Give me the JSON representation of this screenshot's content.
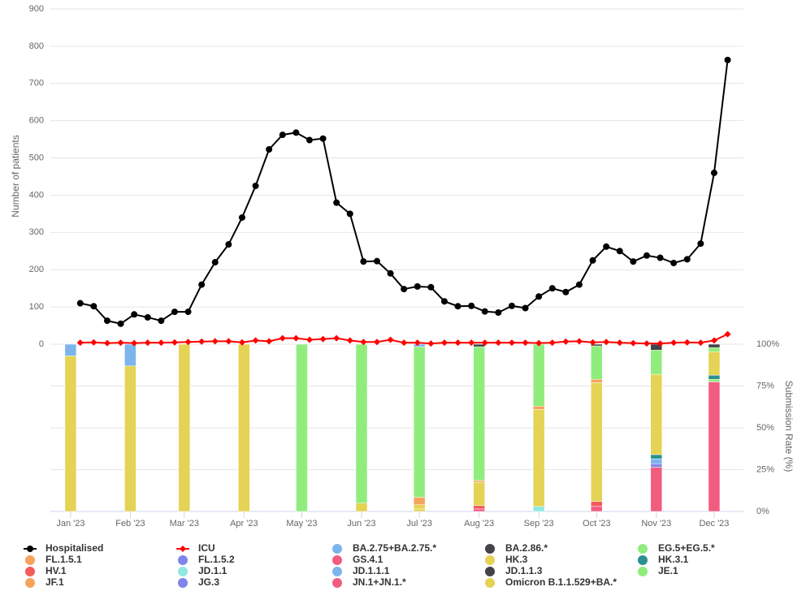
{
  "chart_data": [
    {
      "type": "line",
      "ylabel": "Number of patients",
      "x": [
        5,
        12,
        19,
        26,
        33,
        40,
        47,
        54,
        61,
        68,
        75,
        82,
        89,
        96,
        103,
        110,
        117,
        124,
        131,
        138,
        145,
        152,
        159,
        166,
        173,
        180,
        187,
        194,
        201,
        208,
        215,
        222,
        229,
        236,
        243,
        250,
        257,
        264,
        271,
        278,
        285,
        292,
        299,
        306,
        313,
        320,
        327,
        334,
        341
      ],
      "xlim": [
        -10.5,
        349.2
      ],
      "xticks": [
        {
          "value": 0,
          "label": "Jan '23"
        },
        {
          "value": 31,
          "label": "Feb '23"
        },
        {
          "value": 59,
          "label": "Mar '23"
        },
        {
          "value": 90,
          "label": "Apr '23"
        },
        {
          "value": 120,
          "label": "May '23"
        },
        {
          "value": 151,
          "label": "Jun '23"
        },
        {
          "value": 181,
          "label": "Jul '23"
        },
        {
          "value": 212,
          "label": "Aug '23"
        },
        {
          "value": 243,
          "label": "Sep '23"
        },
        {
          "value": 273,
          "label": "Oct '23"
        },
        {
          "value": 304,
          "label": "Nov '23"
        },
        {
          "value": 334,
          "label": "Dec '23"
        }
      ],
      "ylim": [
        0,
        900
      ],
      "yticks": [
        0,
        100,
        200,
        300,
        400,
        500,
        600,
        700,
        800,
        900
      ],
      "grid": true,
      "series": [
        {
          "name": "Hospitalised",
          "color": "#000000",
          "marker": "circle",
          "values": [
            110,
            102,
            63,
            55,
            80,
            72,
            63,
            87,
            87,
            160,
            220,
            268,
            340,
            425,
            523,
            562,
            568,
            548,
            552,
            380,
            350,
            222,
            223,
            190,
            148,
            155,
            153,
            115,
            102,
            103,
            88,
            85,
            103,
            97,
            128,
            150,
            140,
            160,
            225,
            262,
            250,
            222,
            238,
            232,
            218,
            228,
            270,
            460,
            763
          ]
        },
        {
          "name": "ICU",
          "color": "#ff0000",
          "marker": "diamond",
          "values": [
            4,
            5,
            3,
            4,
            3,
            4,
            4,
            5,
            6,
            7,
            8,
            8,
            5,
            10,
            8,
            16,
            16,
            12,
            14,
            16,
            10,
            6,
            6,
            12,
            4,
            4,
            2,
            4,
            4,
            4,
            4,
            4,
            4,
            4,
            3,
            4,
            7,
            8,
            5,
            6,
            4,
            3,
            2,
            2,
            4,
            5,
            4,
            10,
            27
          ]
        }
      ]
    },
    {
      "type": "bar",
      "stacked": true,
      "y2label": "Submission Rate (%)",
      "x": [
        0,
        31,
        59,
        90,
        120,
        151,
        181,
        212,
        243,
        273,
        304,
        334
      ],
      "y2lim": [
        0,
        100
      ],
      "y2ticks": [
        {
          "value": 0,
          "label": "0%"
        },
        {
          "value": 25,
          "label": "25%"
        },
        {
          "value": 50,
          "label": "50%"
        },
        {
          "value": 75,
          "label": "75%"
        },
        {
          "value": 100,
          "label": "100%"
        }
      ],
      "grid": true,
      "series": [
        {
          "name": "BA.2.75+BA.2.75.*",
          "color": "#7cb5ec",
          "values": [
            7,
            13,
            0,
            0,
            0,
            0,
            1.5,
            0,
            0,
            0,
            0,
            0
          ]
        },
        {
          "name": "BA.2.86.*",
          "color": "#434348",
          "values": [
            0,
            0,
            0,
            0,
            0,
            0,
            0,
            1.5,
            0,
            1,
            3.5,
            2
          ]
        },
        {
          "name": "EG.5+EG.5.*",
          "color": "#90ed7d",
          "values": [
            0,
            0,
            0,
            0,
            100,
            95,
            90,
            80,
            37,
            20,
            14.5,
            2.5
          ]
        },
        {
          "name": "FL.1.5.1",
          "color": "#f7a35c",
          "values": [
            0,
            0,
            0,
            0,
            0,
            0,
            4.5,
            1,
            2,
            2,
            0,
            0
          ]
        },
        {
          "name": "FL.1.5.2",
          "color": "#8085e9",
          "values": [
            0,
            0,
            0,
            0,
            0,
            0,
            0,
            0,
            0,
            0,
            0,
            0
          ]
        },
        {
          "name": "GS.4.1",
          "color": "#f15c80",
          "values": [
            0,
            0,
            0,
            0,
            0,
            0,
            0,
            0,
            0,
            0,
            0,
            0
          ]
        },
        {
          "name": "HK.3",
          "color": "#e4d354",
          "values": [
            0,
            0,
            0,
            0,
            0,
            5,
            2.5,
            14,
            58,
            71,
            48,
            14
          ]
        },
        {
          "name": "HK.3.1",
          "color": "#2b908f",
          "values": [
            0,
            0,
            0,
            0,
            0,
            0,
            0,
            0,
            0,
            0,
            2.5,
            2.5
          ]
        },
        {
          "name": "HV.1",
          "color": "#f45b5b",
          "values": [
            0,
            0,
            0,
            0,
            0,
            0,
            0,
            2,
            0,
            3,
            0,
            0
          ]
        },
        {
          "name": "JD.1.1",
          "color": "#91e8e1",
          "values": [
            0,
            0,
            0,
            0,
            0,
            0,
            0,
            0,
            3,
            0,
            0,
            0
          ]
        },
        {
          "name": "JD.1.1.1",
          "color": "#7cb5ec",
          "values": [
            0,
            0,
            0,
            0,
            0,
            0,
            0,
            0,
            0,
            0,
            3,
            0
          ]
        },
        {
          "name": "JD.1.1.3",
          "color": "#434348",
          "values": [
            0,
            0,
            0,
            0,
            0,
            0,
            0,
            0,
            0,
            0,
            0,
            0
          ]
        },
        {
          "name": "JE.1",
          "color": "#90ed7d",
          "values": [
            0,
            0,
            0,
            0,
            0,
            0,
            0,
            0,
            0,
            0,
            0,
            1.5
          ]
        },
        {
          "name": "JF.1",
          "color": "#f7a35c",
          "values": [
            0,
            0,
            0,
            0,
            0,
            0,
            0,
            0,
            0,
            0,
            0,
            0
          ]
        },
        {
          "name": "JG.3",
          "color": "#8085e9",
          "values": [
            0,
            0,
            0,
            0,
            0,
            0,
            0,
            0,
            0,
            0,
            2,
            0
          ]
        },
        {
          "name": "JN.1+JN.1.*",
          "color": "#f15c80",
          "values": [
            0,
            0,
            0,
            0,
            0,
            0,
            0,
            1.5,
            0,
            3,
            26.5,
            77.5
          ]
        },
        {
          "name": "Omicron B.1.1.529+BA.*",
          "color": "#e4d354",
          "values": [
            93,
            87,
            100,
            100,
            0,
            0,
            1.5,
            0,
            0,
            0,
            0,
            0
          ]
        }
      ]
    }
  ]
}
